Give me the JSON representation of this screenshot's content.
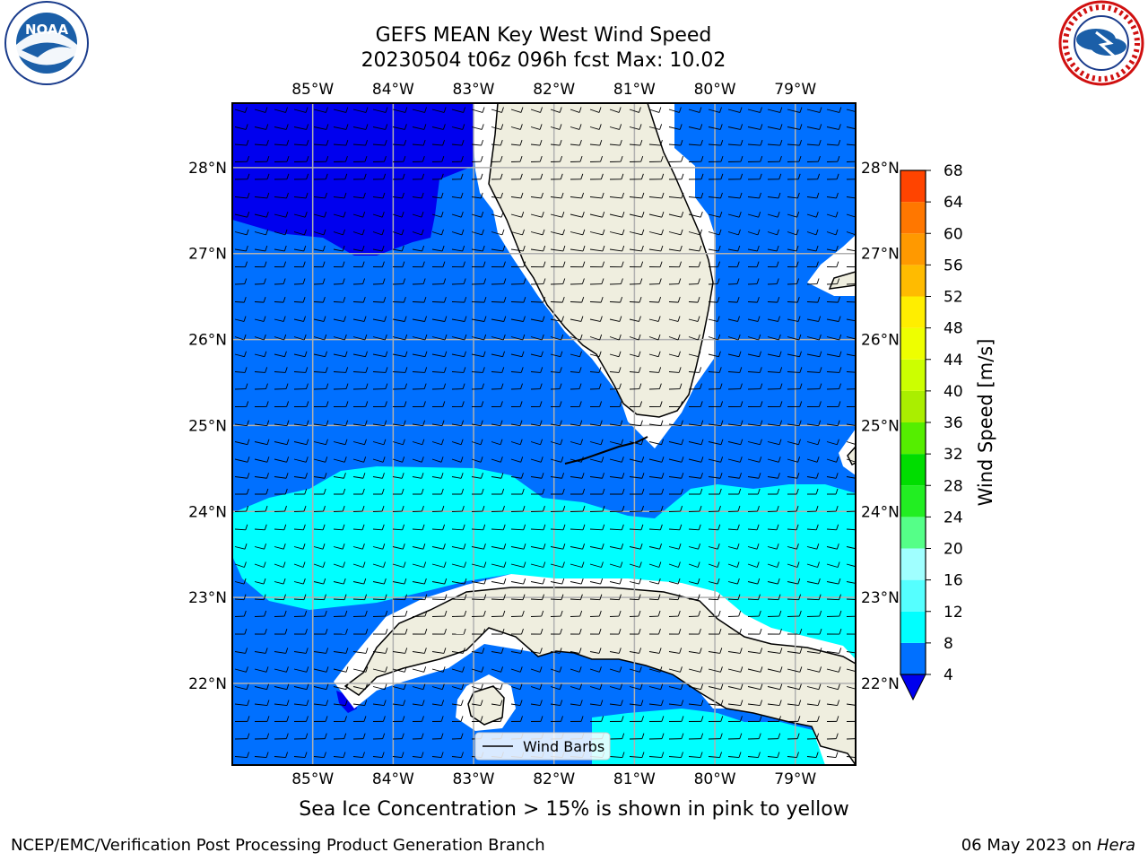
{
  "header": {
    "title_line1": "GEFS MEAN Key West Wind Speed",
    "title_line2": "20230504 t06z 096h fcst   Max: 10.02",
    "left_logo_text": "NOAA",
    "left_logo_ring_top": "NATIONAL OCEANIC AND ATMOSPHERIC ADMINISTRATION",
    "left_logo_ring_bottom": "U.S. DEPARTMENT OF COMMERCE",
    "right_logo_ring": "NATIONAL WEATHER SERVICE"
  },
  "map": {
    "lon_labels": [
      "85°W",
      "84°W",
      "83°W",
      "82°W",
      "81°W",
      "80°W",
      "79°W"
    ],
    "lon_values": [
      -85,
      -84,
      -83,
      -82,
      -81,
      -80,
      -79
    ],
    "lat_labels": [
      "28°N",
      "27°N",
      "26°N",
      "25°N",
      "24°N",
      "23°N",
      "22°N"
    ],
    "lat_values": [
      28,
      27,
      26,
      25,
      24,
      23,
      22
    ],
    "lon_range": [
      -86,
      -78.25
    ],
    "lat_range": [
      21.05,
      28.75
    ],
    "legend_label": "Wind Barbs",
    "colors": {
      "land": "#efeedf",
      "speed_lt4": "#0000ee",
      "speed_4_8": "#0070ff",
      "speed_8_12": "#00ffff",
      "gridline": "#b0b0b0"
    }
  },
  "colorbar": {
    "label": "Wind Speed [m/s]",
    "ticks": [
      "4",
      "8",
      "12",
      "16",
      "20",
      "24",
      "28",
      "32",
      "36",
      "40",
      "44",
      "48",
      "52",
      "56",
      "60",
      "64",
      "68"
    ],
    "colors": [
      "#0070ff",
      "#00ffff",
      "#55ffff",
      "#a0ffff",
      "#55ff88",
      "#22ee22",
      "#00dd00",
      "#55ee00",
      "#aaee00",
      "#ccff00",
      "#eeff00",
      "#ffee00",
      "#ffbb00",
      "#ff9900",
      "#ff7700",
      "#ff4400",
      "#ff1100"
    ],
    "underflow_color": "#0000ee"
  },
  "caption": "Sea Ice Concentration > 15% is shown in pink to yellow",
  "footer": {
    "left": "NCEP/EMC/Verification Post Processing Product Generation Branch",
    "right_date": "06 May 2023 on ",
    "right_host": "Hera"
  }
}
